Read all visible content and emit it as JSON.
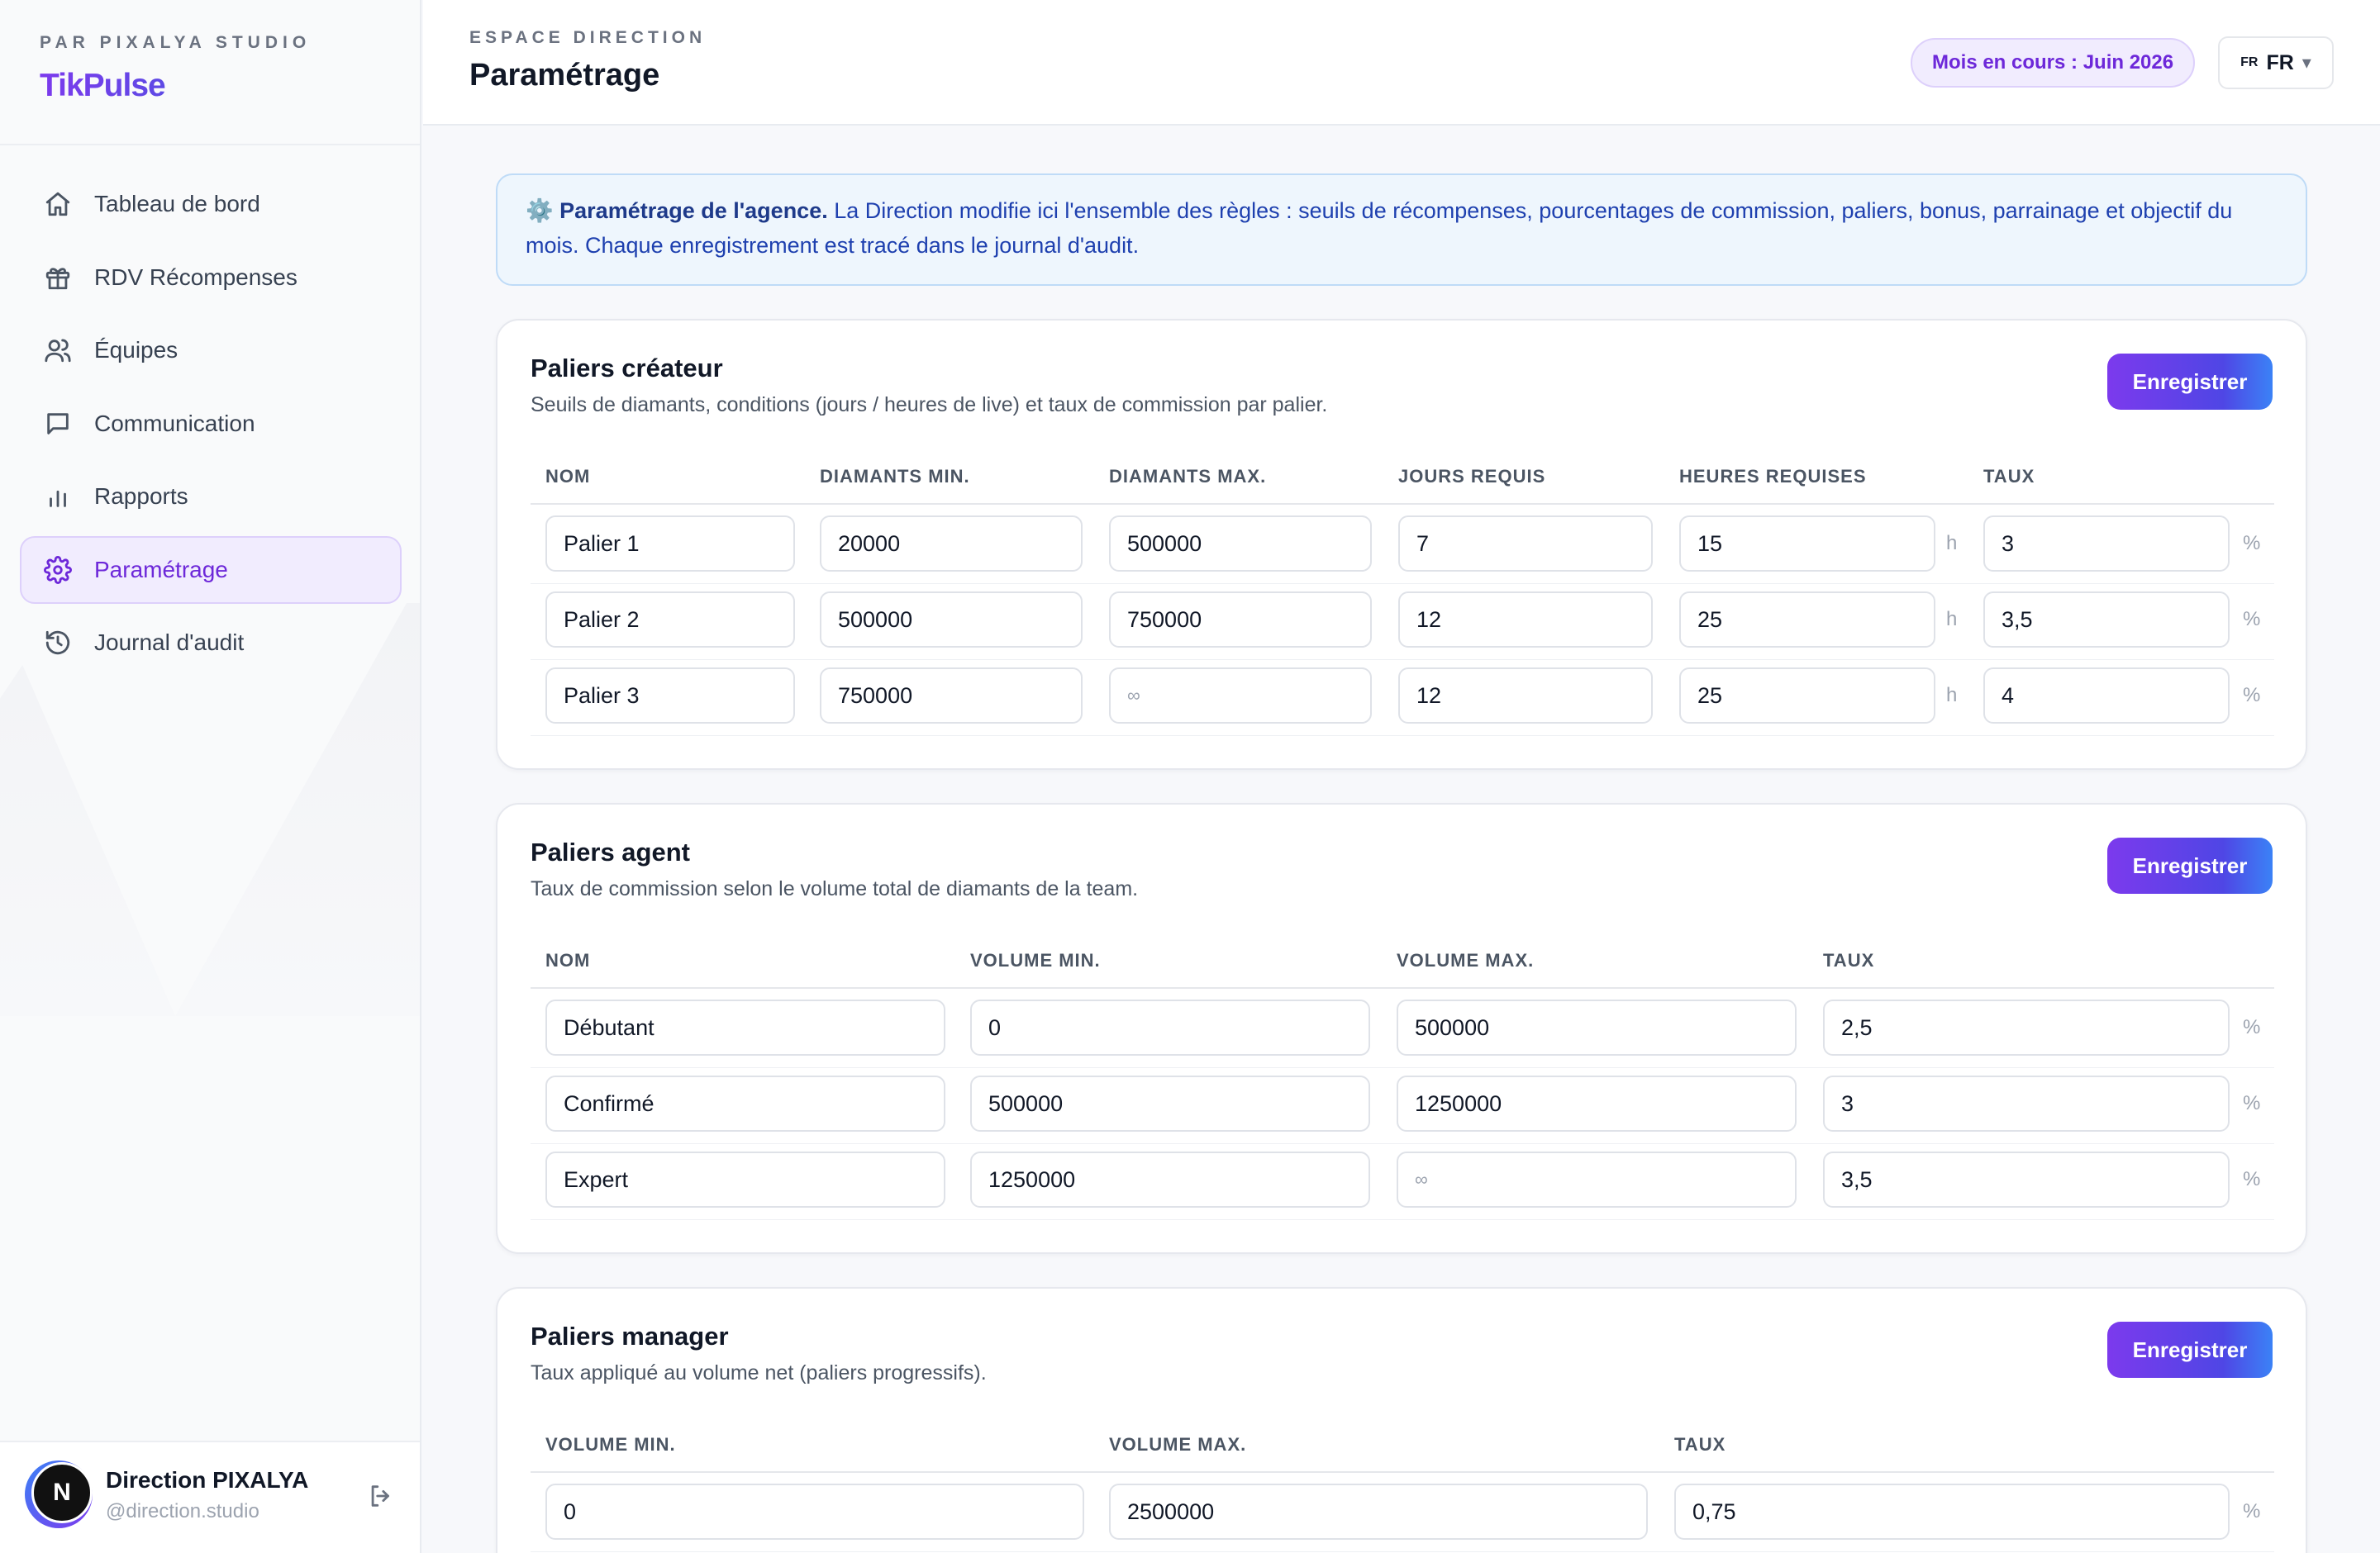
{
  "sidebar": {
    "kicker": "PAR PIXALYA STUDIO",
    "brand": "TikPulse",
    "nav": [
      {
        "label": "Tableau de bord",
        "icon": "home-icon",
        "active": false
      },
      {
        "label": "RDV Récompenses",
        "icon": "gift-icon",
        "active": false
      },
      {
        "label": "Équipes",
        "icon": "users-icon",
        "active": false
      },
      {
        "label": "Communication",
        "icon": "message-icon",
        "active": false
      },
      {
        "label": "Rapports",
        "icon": "bar-chart-icon",
        "active": false
      },
      {
        "label": "Paramétrage",
        "icon": "gear-icon",
        "active": true
      },
      {
        "label": "Journal d'audit",
        "icon": "history-icon",
        "active": false
      }
    ],
    "user": {
      "initial": "N",
      "name": "Direction PIXALYA",
      "handle": "@direction.studio"
    }
  },
  "header": {
    "kicker": "ESPACE DIRECTION",
    "title": "Paramétrage",
    "month_badge": "Mois en cours : Juin 2026",
    "lang_flag": "FR",
    "lang_value": "FR"
  },
  "banner": {
    "icon": "⚙️",
    "bold": "Paramétrage de l'agence.",
    "text": " La Direction modifie ici l'ensemble des règles : seuils de récompenses, pourcentages de commission, paliers, bonus, parrainage et objectif du mois. Chaque enregistrement est tracé dans le journal d'audit."
  },
  "creator_tiers": {
    "title": "Paliers créateur",
    "subtitle": "Seuils de diamants, conditions (jours / heures de live) et taux de commission par palier.",
    "save_label": "Enregistrer",
    "columns": [
      "NOM",
      "DIAMANTS MIN.",
      "DIAMANTS MAX.",
      "JOURS REQUIS",
      "HEURES REQUISES",
      "TAUX"
    ],
    "hours_unit": "h",
    "rate_unit": "%",
    "rows": [
      {
        "name": "Palier 1",
        "min": "20000",
        "max": "500000",
        "days": "7",
        "hours": "15",
        "rate": "3"
      },
      {
        "name": "Palier 2",
        "min": "500000",
        "max": "750000",
        "days": "12",
        "hours": "25",
        "rate": "3,5"
      },
      {
        "name": "Palier 3",
        "min": "750000",
        "max": "∞",
        "days": "12",
        "hours": "25",
        "rate": "4"
      }
    ]
  },
  "agent_tiers": {
    "title": "Paliers agent",
    "subtitle": "Taux de commission selon le volume total de diamants de la team.",
    "save_label": "Enregistrer",
    "columns": [
      "NOM",
      "VOLUME MIN.",
      "VOLUME MAX.",
      "TAUX"
    ],
    "rate_unit": "%",
    "rows": [
      {
        "name": "Débutant",
        "min": "0",
        "max": "500000",
        "rate": "2,5"
      },
      {
        "name": "Confirmé",
        "min": "500000",
        "max": "1250000",
        "rate": "3"
      },
      {
        "name": "Expert",
        "min": "1250000",
        "max": "∞",
        "rate": "3,5"
      }
    ]
  },
  "manager_tiers": {
    "title": "Paliers manager",
    "subtitle": "Taux appliqué au volume net (paliers progressifs).",
    "save_label": "Enregistrer",
    "columns": [
      "VOLUME MIN.",
      "VOLUME MAX.",
      "TAUX"
    ],
    "rate_unit": "%",
    "rows": [
      {
        "min": "0",
        "max": "2500000",
        "rate": "0,75"
      }
    ]
  }
}
